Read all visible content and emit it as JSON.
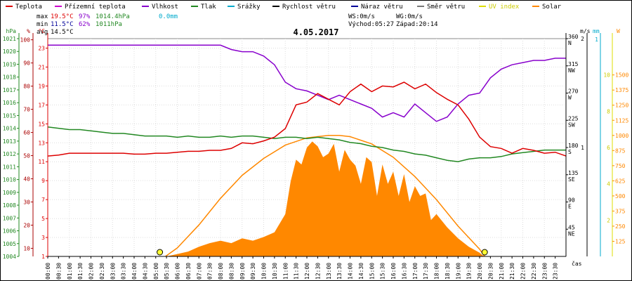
{
  "legend": [
    {
      "label": "Teplota",
      "color": "#dd0000"
    },
    {
      "label": "Přízemní teplota",
      "color": "#cc00cc"
    },
    {
      "label": "Vlhkost",
      "color": "#8800cc"
    },
    {
      "label": "Tlak",
      "color": "#228822"
    },
    {
      "label": "Srážky",
      "color": "#00aacc"
    },
    {
      "label": "Rychlost větru",
      "color": "#000000"
    },
    {
      "label": "Náraz větru",
      "color": "#000099"
    },
    {
      "label": "Směr větru",
      "color": "#777777"
    },
    {
      "label": "UV index",
      "color": "#dddd00"
    },
    {
      "label": "Solar",
      "color": "#ff8800"
    }
  ],
  "stats": {
    "max": {
      "label": "max",
      "temp": "19.5°C",
      "hum": "97%",
      "press": "1014.4hPa",
      "rain": "0.0mm"
    },
    "min": {
      "label": "min",
      "temp": "11.5°C",
      "hum": "62%",
      "press": "1011hPa"
    },
    "avg": {
      "label": "avg",
      "temp": "14.5°C"
    }
  },
  "wind": {
    "ws": "WS:0m/s",
    "wg": "WG:0m/s",
    "sunrise": "Východ:05:27",
    "sunset": "Západ:20:14"
  },
  "chart_data": {
    "type": "line",
    "title": "4.05.2017",
    "xlabel": "čas",
    "x_ticks": [
      "00:00",
      "00:30",
      "01:00",
      "01:30",
      "02:00",
      "02:30",
      "03:00",
      "03:30",
      "04:00",
      "04:30",
      "05:00",
      "05:30",
      "06:00",
      "06:30",
      "07:00",
      "07:30",
      "08:00",
      "08:30",
      "09:00",
      "09:30",
      "10:00",
      "10:30",
      "11:00",
      "11:30",
      "12:00",
      "12:30",
      "13:00",
      "13:30",
      "14:00",
      "14:30",
      "15:00",
      "15:30",
      "16:00",
      "16:30",
      "17:00",
      "17:30",
      "18:00",
      "18:30",
      "19:00",
      "19:30",
      "20:00",
      "20:30",
      "21:00",
      "21:30",
      "22:00",
      "22:30",
      "23:00",
      "23:30"
    ],
    "axes": {
      "pressure": {
        "unit": "hPa",
        "ticks": [
          "1021",
          "1020",
          "1019",
          "1018",
          "1017",
          "1016",
          "1015",
          "1014",
          "1013",
          "1012",
          "1011",
          "1010",
          "1009",
          "1008",
          "1007",
          "1006",
          "1005",
          "1004"
        ],
        "ylim": [
          1004,
          1021
        ]
      },
      "humidity": {
        "unit": "%",
        "ticks": [
          "100",
          "90",
          "80",
          "70",
          "60",
          "50",
          "40",
          "30",
          "20",
          "10"
        ],
        "ylim": [
          0,
          100
        ]
      },
      "temperature": {
        "unit": "°C",
        "ticks": [
          "23",
          "21",
          "19",
          "17",
          "15",
          "13",
          "11",
          "9",
          "7",
          "5",
          "3",
          "1"
        ],
        "ylim": [
          1,
          24
        ]
      },
      "wind_direction": {
        "ticks": [
          "360 N",
          "315 NW",
          "270 W",
          "225 SW",
          "180 S",
          "135 SE",
          "90 E",
          "45 NE"
        ],
        "ylim": [
          0,
          360
        ]
      },
      "wind_speed": {
        "unit": "m/s",
        "ticks": [
          "2",
          "1"
        ]
      },
      "rain": {
        "unit": "mm",
        "ticks": [
          "1"
        ]
      },
      "uv": {
        "ticks": [
          "10",
          "8",
          "6",
          "4",
          "2"
        ]
      },
      "solar": {
        "unit": "W",
        "ticks": [
          "1500",
          "1375",
          "1250",
          "1125",
          "1000",
          "875",
          "750",
          "625",
          "500",
          "375",
          "250",
          "125"
        ],
        "ylim": [
          0,
          1800
        ]
      }
    },
    "series": [
      {
        "name": "Teplota",
        "color": "#dd0000",
        "x": [
          0,
          0.5,
          1,
          1.5,
          2,
          2.5,
          3,
          3.5,
          4,
          4.5,
          5,
          5.5,
          6,
          6.5,
          7,
          7.5,
          8,
          8.5,
          9,
          9.5,
          10,
          10.5,
          11,
          11.5,
          12,
          12.5,
          13,
          13.5,
          14,
          14.5,
          15,
          15.5,
          16,
          16.5,
          17,
          17.5,
          18,
          18.5,
          19,
          19.5,
          20,
          20.5,
          21,
          21.5,
          22,
          22.5,
          23,
          23.5,
          24
        ],
        "y": [
          11.6,
          11.7,
          11.9,
          11.9,
          11.9,
          11.9,
          11.9,
          11.9,
          11.8,
          11.8,
          11.9,
          11.9,
          12.0,
          12.1,
          12.1,
          12.2,
          12.2,
          12.4,
          13.0,
          12.9,
          13.2,
          13.6,
          14.5,
          17.0,
          17.3,
          18.2,
          17.6,
          17.0,
          18.4,
          19.2,
          18.4,
          19.0,
          18.9,
          19.4,
          18.7,
          19.2,
          18.3,
          17.6,
          17.0,
          15.5,
          13.6,
          12.6,
          12.4,
          11.9,
          12.4,
          12.2,
          11.9,
          12.0,
          11.6
        ]
      },
      {
        "name": "Vlhkost",
        "color": "#8800cc",
        "x": [
          0,
          0.5,
          1,
          1.5,
          2,
          2.5,
          3,
          3.5,
          4,
          4.5,
          5,
          5.5,
          6,
          6.5,
          7,
          7.5,
          8,
          8.5,
          9,
          9.5,
          10,
          10.5,
          11,
          11.5,
          12,
          12.5,
          13,
          13.5,
          14,
          14.5,
          15,
          15.5,
          16,
          16.5,
          17,
          17.5,
          18,
          18.5,
          19,
          19.5,
          20,
          20.5,
          21,
          21.5,
          22,
          22.5,
          23,
          23.5,
          24
        ],
        "y": [
          97,
          97,
          97,
          97,
          97,
          97,
          97,
          97,
          97,
          97,
          97,
          97,
          97,
          97,
          97,
          97,
          97,
          95,
          94,
          94,
          92,
          88,
          80,
          77,
          76,
          74,
          72,
          74,
          72,
          70,
          68,
          64,
          66,
          64,
          70,
          66,
          62,
          64,
          70,
          74,
          75,
          82,
          86,
          88,
          89,
          90,
          90,
          91,
          91
        ]
      },
      {
        "name": "Tlak",
        "color": "#228822",
        "x": [
          0,
          0.5,
          1,
          1.5,
          2,
          2.5,
          3,
          3.5,
          4,
          4.5,
          5,
          5.5,
          6,
          6.5,
          7,
          7.5,
          8,
          8.5,
          9,
          9.5,
          10,
          10.5,
          11,
          11.5,
          12,
          12.5,
          13,
          13.5,
          14,
          14.5,
          15,
          15.5,
          16,
          16.5,
          17,
          17.5,
          18,
          18.5,
          19,
          19.5,
          20,
          20.5,
          21,
          21.5,
          22,
          22.5,
          23,
          23.5,
          24
        ],
        "y": [
          1014.1,
          1014.0,
          1013.9,
          1013.9,
          1013.8,
          1013.7,
          1013.6,
          1013.6,
          1013.5,
          1013.4,
          1013.4,
          1013.4,
          1013.3,
          1013.4,
          1013.3,
          1013.3,
          1013.4,
          1013.3,
          1013.4,
          1013.4,
          1013.3,
          1013.2,
          1013.3,
          1013.3,
          1013.2,
          1013.3,
          1013.2,
          1013.1,
          1012.9,
          1012.8,
          1012.6,
          1012.5,
          1012.3,
          1012.2,
          1012.0,
          1011.9,
          1011.7,
          1011.5,
          1011.4,
          1011.6,
          1011.7,
          1011.7,
          1011.8,
          1012.0,
          1012.1,
          1012.2,
          1012.3,
          1012.3,
          1012.3
        ]
      },
      {
        "name": "Solar",
        "color": "#ff8800",
        "x": [
          0,
          5.5,
          6,
          6.5,
          7,
          7.5,
          8,
          8.5,
          9,
          9.5,
          10,
          10.5,
          11,
          11.25,
          11.5,
          11.75,
          12,
          12.25,
          12.5,
          12.75,
          13,
          13.25,
          13.5,
          13.75,
          14,
          14.25,
          14.5,
          14.75,
          15,
          15.25,
          15.5,
          15.75,
          16,
          16.25,
          16.5,
          16.75,
          17,
          17.25,
          17.5,
          17.75,
          18,
          18.5,
          19,
          19.5,
          20,
          20.2,
          24
        ],
        "y": [
          0,
          0,
          20,
          40,
          80,
          110,
          130,
          110,
          150,
          130,
          160,
          200,
          350,
          620,
          800,
          760,
          900,
          950,
          910,
          820,
          850,
          930,
          700,
          880,
          800,
          750,
          600,
          820,
          780,
          500,
          760,
          600,
          700,
          500,
          680,
          450,
          580,
          500,
          520,
          300,
          350,
          240,
          150,
          80,
          30,
          0,
          0
        ]
      },
      {
        "name": "Solar max",
        "color": "#ff8800",
        "x": [
          5.45,
          6,
          7,
          8,
          9,
          10,
          11,
          12,
          13,
          13.5,
          14,
          15,
          16,
          17,
          18,
          19,
          20,
          20.23
        ],
        "y": [
          0,
          70,
          260,
          480,
          670,
          810,
          920,
          980,
          1000,
          1000,
          990,
          930,
          820,
          660,
          470,
          250,
          60,
          0
        ]
      }
    ]
  }
}
